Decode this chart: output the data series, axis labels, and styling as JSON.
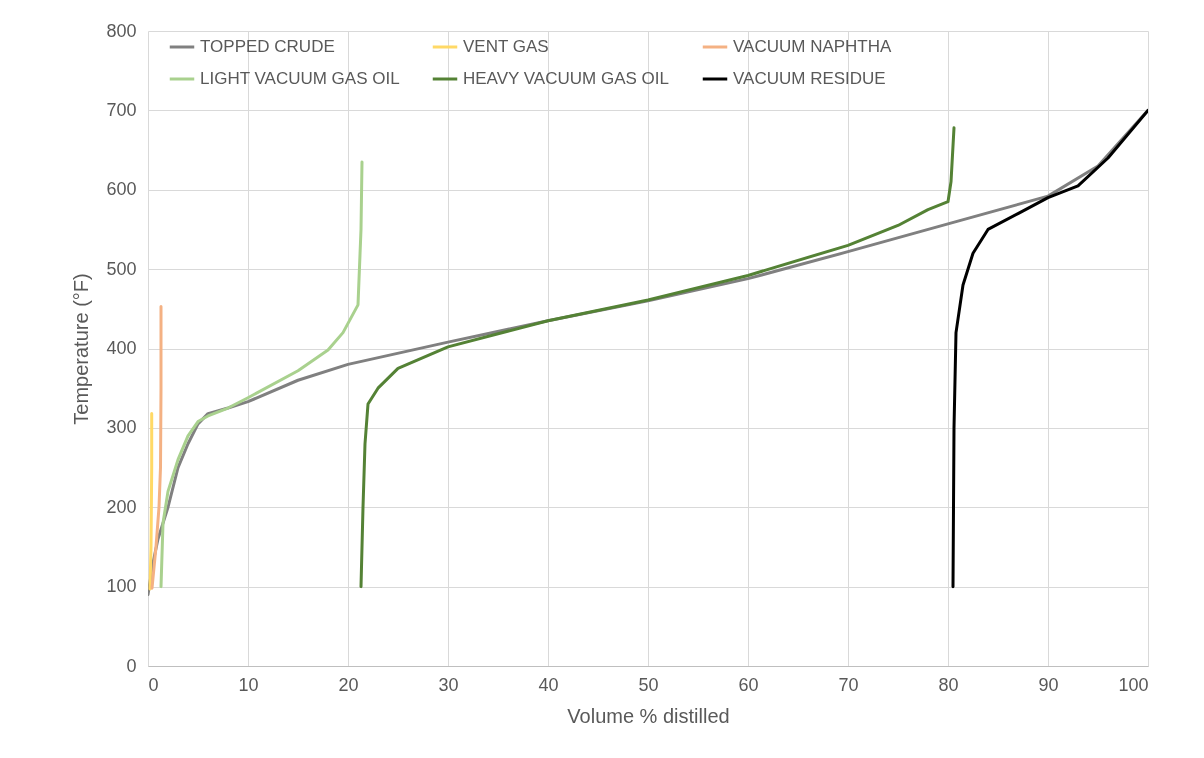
{
  "chart_data": {
    "type": "line",
    "xlabel": "Volume % distilled",
    "ylabel": "Temperature (°F)",
    "xlim": [
      0,
      100
    ],
    "ylim": [
      0,
      800
    ],
    "xticks": [
      0,
      10,
      20,
      30,
      40,
      50,
      60,
      70,
      80,
      90,
      100
    ],
    "yticks": [
      0,
      100,
      200,
      300,
      400,
      500,
      600,
      700,
      800
    ],
    "grid": true,
    "legend": "top",
    "marker": "none",
    "line_style": "solid",
    "series": [
      {
        "name": "TOPPED CRUDE",
        "color": "#808080",
        "x": [
          0,
          0.5,
          1,
          2,
          3,
          4,
          5,
          6,
          8,
          10,
          15,
          20,
          30,
          40,
          50,
          60,
          70,
          80,
          90,
          95,
          100
        ],
        "values": [
          90,
          130,
          160,
          200,
          250,
          280,
          305,
          318,
          325,
          333,
          360,
          380,
          408,
          435,
          460,
          488,
          522,
          557,
          592,
          630,
          700
        ]
      },
      {
        "name": "VENT GAS",
        "color": "#ffd966",
        "x": [
          0.2,
          0.3,
          0.37,
          0.37
        ],
        "values": [
          97,
          150,
          250,
          318
        ]
      },
      {
        "name": "VACUUM NAPHTHA",
        "color": "#f4b183",
        "x": [
          0.4,
          0.8,
          1.1,
          1.25,
          1.3,
          1.3
        ],
        "values": [
          98,
          150,
          200,
          250,
          350,
          453
        ]
      },
      {
        "name": "LIGHT VACUUM GAS OIL",
        "color": "#a9d18e",
        "x": [
          1.3,
          1.5,
          2,
          3,
          4,
          5,
          6,
          8,
          10,
          15,
          18,
          19.5,
          21,
          21.3,
          21.4
        ],
        "values": [
          100,
          180,
          220,
          260,
          290,
          308,
          315,
          325,
          338,
          372,
          398,
          420,
          455,
          550,
          635
        ]
      },
      {
        "name": "HEAVY VACUUM GAS OIL",
        "color": "#548235",
        "x": [
          21.3,
          21.5,
          21.7,
          22,
          23,
          25,
          30,
          40,
          50,
          60,
          70,
          75,
          78,
          80,
          80.3,
          80.6
        ],
        "values": [
          100,
          200,
          280,
          330,
          350,
          375,
          402,
          435,
          461,
          492,
          530,
          555,
          575,
          585,
          610,
          678
        ]
      },
      {
        "name": "VACUUM RESIDUE",
        "color": "#000000",
        "x": [
          80.5,
          80.6,
          80.8,
          81.5,
          82.5,
          84,
          87,
          90,
          93,
          96,
          100
        ],
        "values": [
          100,
          300,
          420,
          480,
          520,
          550,
          570,
          590,
          605,
          640,
          700
        ]
      }
    ]
  }
}
